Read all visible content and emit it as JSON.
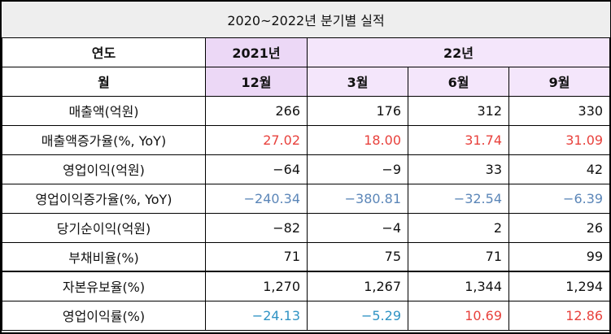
{
  "title": "2020~2022년 분기별 실적",
  "header1": {
    "year_label": "연도",
    "y2021": "2021년",
    "y2022": "22년"
  },
  "header2": {
    "month_label": "월",
    "m1": "12월",
    "m2": "3월",
    "m3": "6월",
    "m4": "9월"
  },
  "rows": [
    {
      "label": "매출액(억원)",
      "values": [
        "266",
        "176",
        "312",
        "330"
      ],
      "color": "black"
    },
    {
      "label": "매출액증가율(%, YoY)",
      "values": [
        "27.02",
        "18.00",
        "31.74",
        "31.09"
      ],
      "color": "red"
    },
    {
      "label": "영업이익(억원)",
      "values": [
        "−64",
        "−9",
        "33",
        "42"
      ],
      "color": "black"
    },
    {
      "label": "영업이익증가율(%, YoY)",
      "values": [
        "−240.34",
        "−380.81",
        "−32.54",
        "−6.39"
      ],
      "color": "blue"
    },
    {
      "label": "당기순이익(억원)",
      "values": [
        "−82",
        "−4",
        "2",
        "26"
      ],
      "color": "black"
    },
    {
      "label": "부채비율(%)",
      "values": [
        "71",
        "75",
        "71",
        "99"
      ],
      "color": "black"
    },
    {
      "label": "자본유보율(%)",
      "values": [
        "1,270",
        "1,267",
        "1,344",
        "1,294"
      ],
      "color": "black"
    },
    {
      "label": "영업이익률(%)",
      "values": [
        "−24.13",
        "−5.29",
        "10.69",
        "12.86"
      ],
      "colors": [
        "teal",
        "teal",
        "red",
        "red"
      ]
    }
  ],
  "colors": {
    "red": "#e8413c",
    "blue": "#5b86b8",
    "teal": "#2f93c4",
    "header_purple": "#ecd8f6",
    "title_bg": "#eeeeee"
  }
}
